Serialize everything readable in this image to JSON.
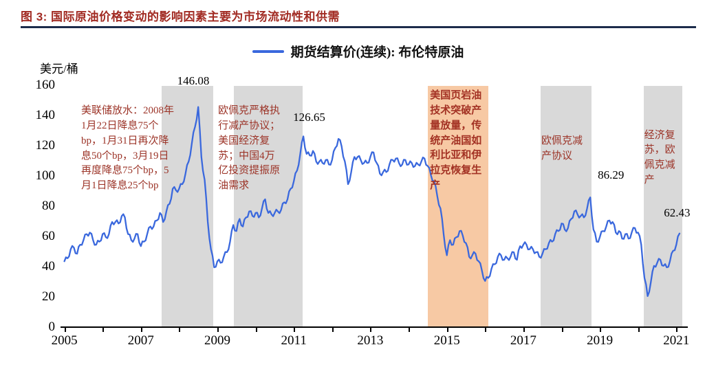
{
  "header": {
    "title": "图 3: 国际原油价格变动的影响因素主要为市场流动性和供需",
    "title_color": "#a12a22",
    "rule_color": "#1c2b4a"
  },
  "chart_data": {
    "type": "line",
    "title": "图 3: 国际原油价格变动的影响因素主要为市场流动性和供需",
    "ylabel": "美元/桶",
    "legend": {
      "label": "期货结算价(连续): 布伦特原油",
      "color": "#3a68dd",
      "position": "top-center"
    },
    "xlim": [
      2004.9,
      2021.3
    ],
    "ylim": [
      0,
      160
    ],
    "yticks": [
      0,
      20,
      40,
      60,
      80,
      100,
      120,
      140,
      160
    ],
    "xticks": [
      2005,
      2007,
      2009,
      2011,
      2013,
      2015,
      2017,
      2019,
      2021
    ],
    "grid": false,
    "series": [
      {
        "name": "期货结算价(连续): 布伦特原油",
        "unit": "美元/桶",
        "color": "#3a68dd",
        "x_start": 2005,
        "x_step_years": 0.0833333,
        "values": [
          44,
          46,
          52,
          53,
          49,
          55,
          58,
          62,
          63,
          58,
          55,
          57,
          62,
          60,
          62,
          70,
          70,
          69,
          74,
          73,
          62,
          58,
          59,
          62,
          54,
          57,
          62,
          67,
          67,
          71,
          76,
          70,
          77,
          82,
          92,
          91,
          92,
          95,
          102,
          110,
          122,
          133,
          146.08,
          113,
          98,
          70,
          52,
          40,
          44,
          43,
          47,
          50,
          57,
          68,
          64,
          72,
          67,
          73,
          77,
          74,
          76,
          73,
          79,
          85,
          76,
          75,
          76,
          77,
          78,
          83,
          85,
          92,
          97,
          104,
          115,
          126.65,
          115,
          114,
          117,
          110,
          110,
          109,
          111,
          108,
          111,
          119,
          125,
          120,
          110,
          95,
          103,
          113,
          113,
          111,
          109,
          109,
          113,
          116,
          109,
          102,
          103,
          103,
          108,
          111,
          112,
          109,
          108,
          111,
          108,
          109,
          107,
          108,
          110,
          112,
          107,
          101,
          97,
          87,
          79,
          62,
          48,
          58,
          55,
          60,
          64,
          61,
          56,
          47,
          48,
          49,
          44,
          38,
          31,
          33,
          39,
          42,
          47,
          48,
          45,
          46,
          47,
          50,
          45,
          54,
          55,
          55,
          52,
          52,
          50,
          47,
          49,
          52,
          56,
          57,
          62,
          64,
          69,
          65,
          66,
          72,
          77,
          75,
          74,
          73,
          79,
          86.29,
          65,
          57,
          60,
          64,
          67,
          71,
          70,
          63,
          64,
          59,
          62,
          59,
          63,
          66,
          63,
          55,
          33,
          21,
          30,
          41,
          43,
          45,
          41,
          40,
          44,
          51,
          55,
          62.43
        ]
      }
    ],
    "bands": [
      {
        "x0": 2007.54,
        "x1": 2008.89,
        "color": "#d9d9d9"
      },
      {
        "x0": 2009.43,
        "x1": 2011.23,
        "color": "#d9d9d9"
      },
      {
        "x0": 2014.5,
        "x1": 2016.09,
        "color": "#f7c9a4"
      },
      {
        "x0": 2017.45,
        "x1": 2018.78,
        "color": "#d9d9d9"
      },
      {
        "x0": 2020.15,
        "x1": 2021.16,
        "color": "#d9d9d9"
      }
    ],
    "point_labels": [
      {
        "x": 2008.37,
        "y": 163,
        "text": "146.08"
      },
      {
        "x": 2011.4,
        "y": 139,
        "text": "126.65"
      },
      {
        "x": 2019.29,
        "y": 101,
        "text": "86.29"
      },
      {
        "x": 2021.02,
        "y": 76,
        "text": "62.43"
      }
    ],
    "annotations": [
      {
        "x": 2005.44,
        "y": 148,
        "w": 142,
        "color": "#9c3428",
        "bold": false,
        "text": "美联储放水：2008年1月22日降息75个bp，1月31日再次降息50个bp，3月19日再度降息75个bp，5月1日降息25个bp"
      },
      {
        "x": 2009.02,
        "y": 148,
        "w": 96,
        "color": "#9c3428",
        "bold": false,
        "text": "欧佩克严格执行减产协议；美国经济复苏；中国4万亿投资提振原油需求"
      },
      {
        "x": 2014.56,
        "y": 158,
        "w": 84,
        "color": "#a33224",
        "bold": true,
        "text": "美国页岩油技术突破产量放量，传统产油国如利比亚和伊拉克恢复生产"
      },
      {
        "x": 2017.47,
        "y": 128,
        "w": 70,
        "color": "#9c3428",
        "bold": false,
        "text": "欧佩克减产协议"
      },
      {
        "x": 2020.16,
        "y": 132,
        "w": 54,
        "color": "#9c3428",
        "bold": false,
        "text": "经济复苏，欧佩克减产"
      }
    ]
  }
}
